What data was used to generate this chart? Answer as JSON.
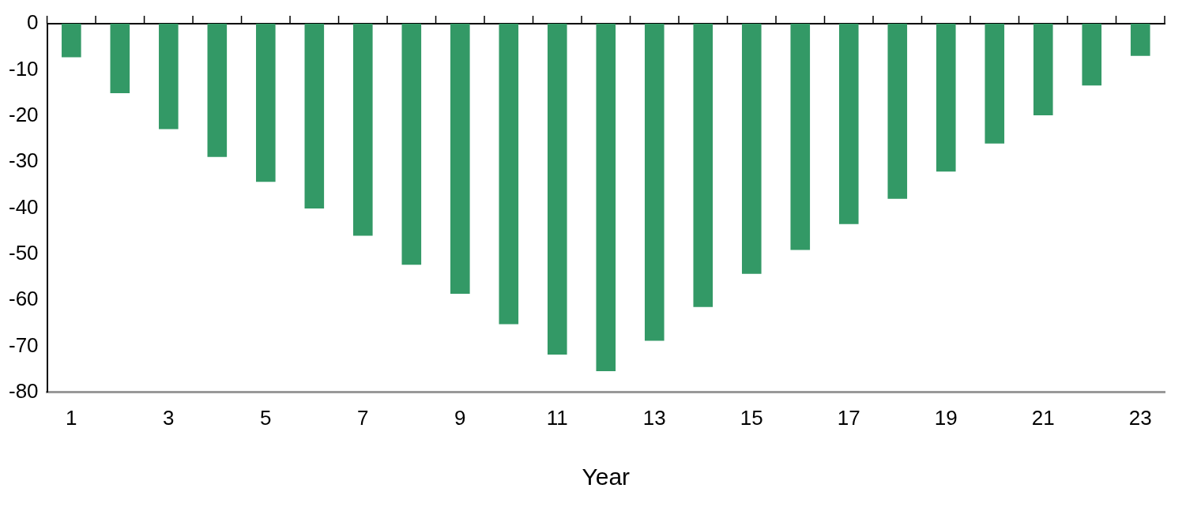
{
  "chart_data": {
    "type": "bar",
    "xlabel": "Year",
    "x": [
      1,
      2,
      3,
      4,
      5,
      6,
      7,
      8,
      9,
      10,
      11,
      12,
      13,
      14,
      15,
      16,
      17,
      18,
      19,
      20,
      21,
      22,
      23
    ],
    "xlim": [
      0.5,
      23.5
    ],
    "xticks": [
      1,
      3,
      5,
      7,
      9,
      11,
      13,
      15,
      17,
      19,
      21,
      23
    ],
    "values": [
      -7.3,
      -15.1,
      -22.9,
      -28.9,
      -34.3,
      -40.1,
      -46.0,
      -52.3,
      -58.6,
      -65.2,
      -71.8,
      -75.4,
      -68.8,
      -61.5,
      -54.3,
      -49.1,
      -43.5,
      -38.0,
      -32.1,
      -26.0,
      -19.9,
      -13.4,
      -7.0
    ],
    "color": "#339966",
    "ylim": [
      -80,
      0
    ],
    "yticks": [
      0,
      -10,
      -20,
      -30,
      -40,
      -50,
      -60,
      -70,
      -80
    ],
    "grid": false
  }
}
